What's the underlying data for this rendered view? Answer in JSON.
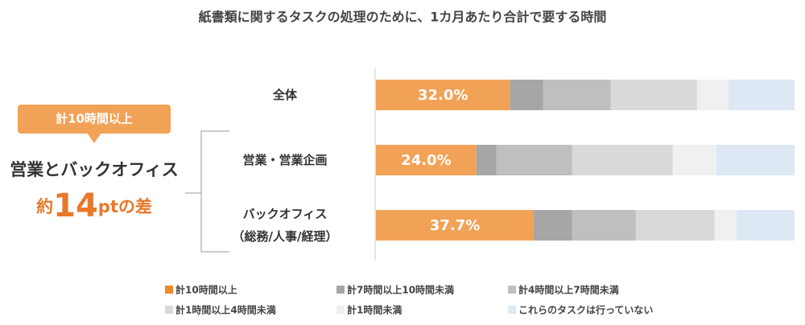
{
  "chart_data": {
    "type": "stacked-bar-horizontal",
    "title": "紙書類に関するタスクの処理のために、1カ月あたり合計で要する時間",
    "categories": [
      "全体",
      "営業・営業企画",
      "バックオフィス\n（総務/人事/経理）"
    ],
    "xlim": [
      0,
      100
    ],
    "series": [
      {
        "name": "計10時間以上",
        "color": "#f2a257",
        "legend_color": "#ee8a2a",
        "values": [
          32.0,
          24.0,
          37.7
        ],
        "value_labels": [
          "32.0%",
          "24.0%",
          "37.7%"
        ]
      },
      {
        "name": "計7時間以上10時間未満",
        "color": "#a6a6a6",
        "values": [
          7.9,
          4.8,
          9.2
        ]
      },
      {
        "name": "計4時間以上7時間未満",
        "color": "#bfbfbf",
        "values": [
          16.2,
          18.1,
          15.2
        ]
      },
      {
        "name": "計1時間以上4時間未満",
        "color": "#d9d9d9",
        "values": [
          20.6,
          24.0,
          18.8
        ]
      },
      {
        "name": "計1時間未満",
        "color": "#f0f0f0",
        "values": [
          7.5,
          10.4,
          5.2
        ]
      },
      {
        "name": "これらのタスクは行っていない",
        "color": "#dde8f4",
        "values": [
          15.8,
          18.7,
          13.9
        ]
      }
    ],
    "annotation": {
      "badge": "計10時間以上",
      "label": "営業とバックオフィス",
      "difference": [
        "約",
        "14",
        "ptの差"
      ]
    }
  }
}
